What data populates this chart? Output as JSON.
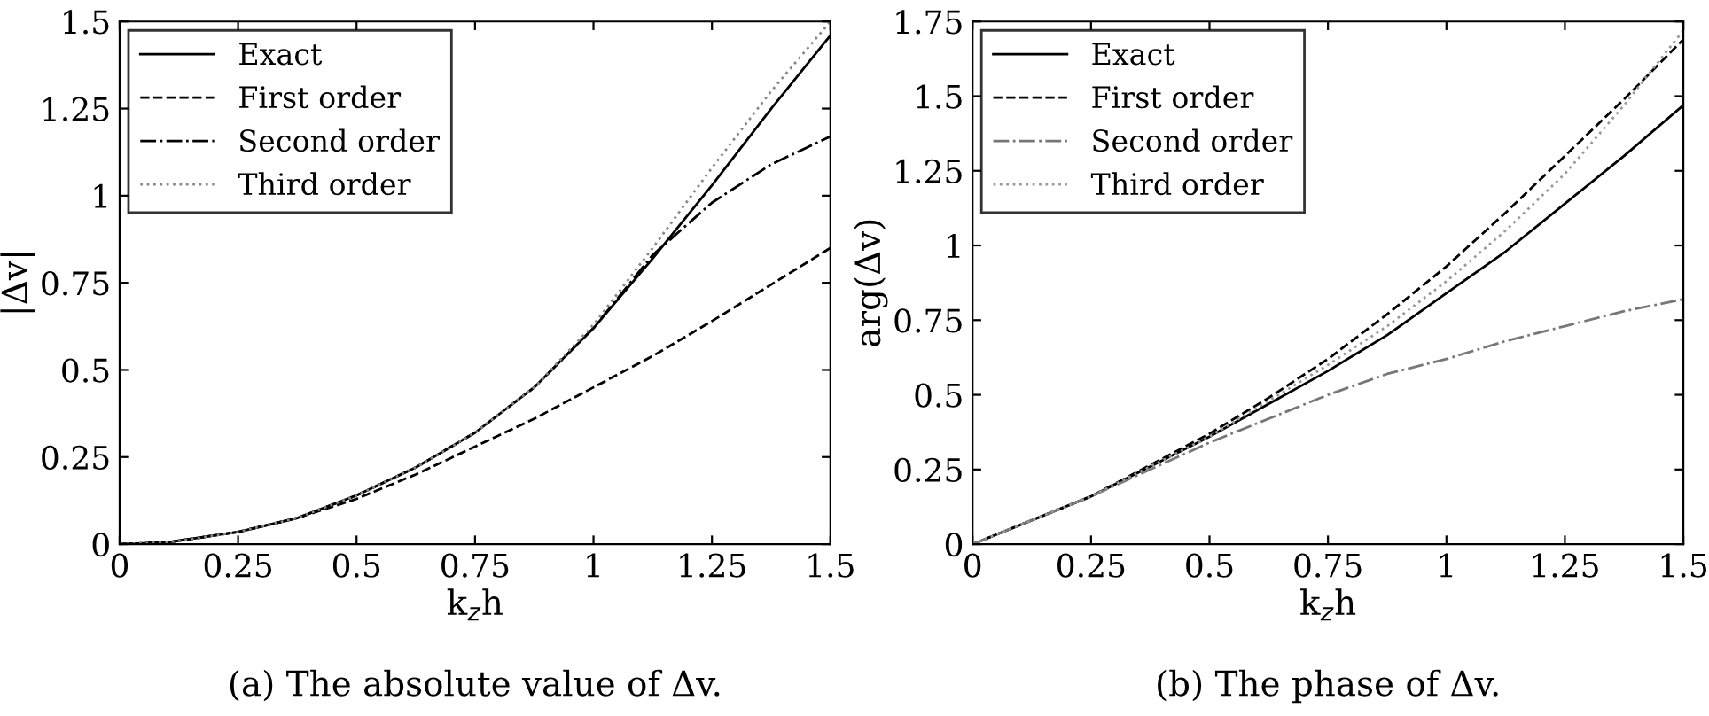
{
  "chart_data": [
    {
      "type": "line",
      "xlabel": "k$_{z}$h",
      "ylabel": "|Δv|",
      "annotations": [
        "(a) The absolute value of Δv."
      ],
      "xlim": [
        0,
        1.5
      ],
      "ylim": [
        0,
        1.5
      ],
      "xticks": [
        0,
        0.25,
        0.5,
        0.75,
        1,
        1.25,
        1.5
      ],
      "yticks": [
        0,
        0.25,
        0.5,
        0.75,
        1,
        1.25,
        1.5
      ],
      "legend": "top left",
      "grid": false,
      "x": [
        0,
        0.1,
        0.25,
        0.375,
        0.5,
        0.625,
        0.75,
        0.875,
        1.0,
        1.125,
        1.25,
        1.375,
        1.5
      ],
      "series": [
        {
          "name": "Exact",
          "color": "#000000",
          "line_style": "solid",
          "values": [
            0,
            0.005,
            0.035,
            0.075,
            0.14,
            0.22,
            0.32,
            0.45,
            0.62,
            0.82,
            1.03,
            1.25,
            1.46
          ]
        },
        {
          "name": "First order",
          "color": "#000000",
          "line_style": "dashed",
          "values": [
            0,
            0.005,
            0.035,
            0.075,
            0.13,
            0.2,
            0.28,
            0.36,
            0.45,
            0.54,
            0.64,
            0.745,
            0.85
          ]
        },
        {
          "name": "Second order",
          "color": "#000000",
          "line_style": "dashdot",
          "values": [
            0,
            0.005,
            0.035,
            0.075,
            0.14,
            0.22,
            0.32,
            0.45,
            0.62,
            0.83,
            0.98,
            1.09,
            1.17
          ]
        },
        {
          "name": "Third order",
          "color": "#888888",
          "line_style": "dotted",
          "values": [
            0,
            0.005,
            0.035,
            0.075,
            0.14,
            0.22,
            0.32,
            0.45,
            0.63,
            0.85,
            1.08,
            1.3,
            1.5
          ]
        }
      ]
    },
    {
      "type": "line",
      "xlabel": "k$_{z}$h",
      "ylabel": "arg(Δv)",
      "annotations": [
        "(b) The phase of Δv."
      ],
      "xlim": [
        0,
        1.5
      ],
      "ylim": [
        0,
        1.75
      ],
      "xticks": [
        0,
        0.25,
        0.5,
        0.75,
        1,
        1.25,
        1.5
      ],
      "yticks": [
        0,
        0.25,
        0.5,
        0.75,
        1,
        1.25,
        1.5,
        1.75
      ],
      "legend": "top left",
      "grid": false,
      "x": [
        0,
        0.125,
        0.25,
        0.375,
        0.5,
        0.625,
        0.75,
        0.875,
        1.0,
        1.125,
        1.25,
        1.375,
        1.5
      ],
      "series": [
        {
          "name": "Exact",
          "color": "#000000",
          "line_style": "solid",
          "values": [
            0,
            0.08,
            0.16,
            0.26,
            0.36,
            0.47,
            0.58,
            0.7,
            0.84,
            0.98,
            1.14,
            1.3,
            1.47
          ]
        },
        {
          "name": "First order",
          "color": "#000000",
          "line_style": "dashed",
          "values": [
            0,
            0.08,
            0.16,
            0.265,
            0.37,
            0.49,
            0.62,
            0.77,
            0.93,
            1.11,
            1.3,
            1.49,
            1.69
          ]
        },
        {
          "name": "Second order",
          "color": "#777777",
          "line_style": "dashdot",
          "values": [
            0,
            0.08,
            0.16,
            0.25,
            0.34,
            0.42,
            0.5,
            0.57,
            0.62,
            0.68,
            0.73,
            0.78,
            0.82
          ]
        },
        {
          "name": "Third order",
          "color": "#999999",
          "line_style": "dotted",
          "values": [
            0,
            0.08,
            0.16,
            0.26,
            0.36,
            0.48,
            0.6,
            0.73,
            0.88,
            1.05,
            1.24,
            1.47,
            1.72
          ]
        }
      ]
    }
  ]
}
